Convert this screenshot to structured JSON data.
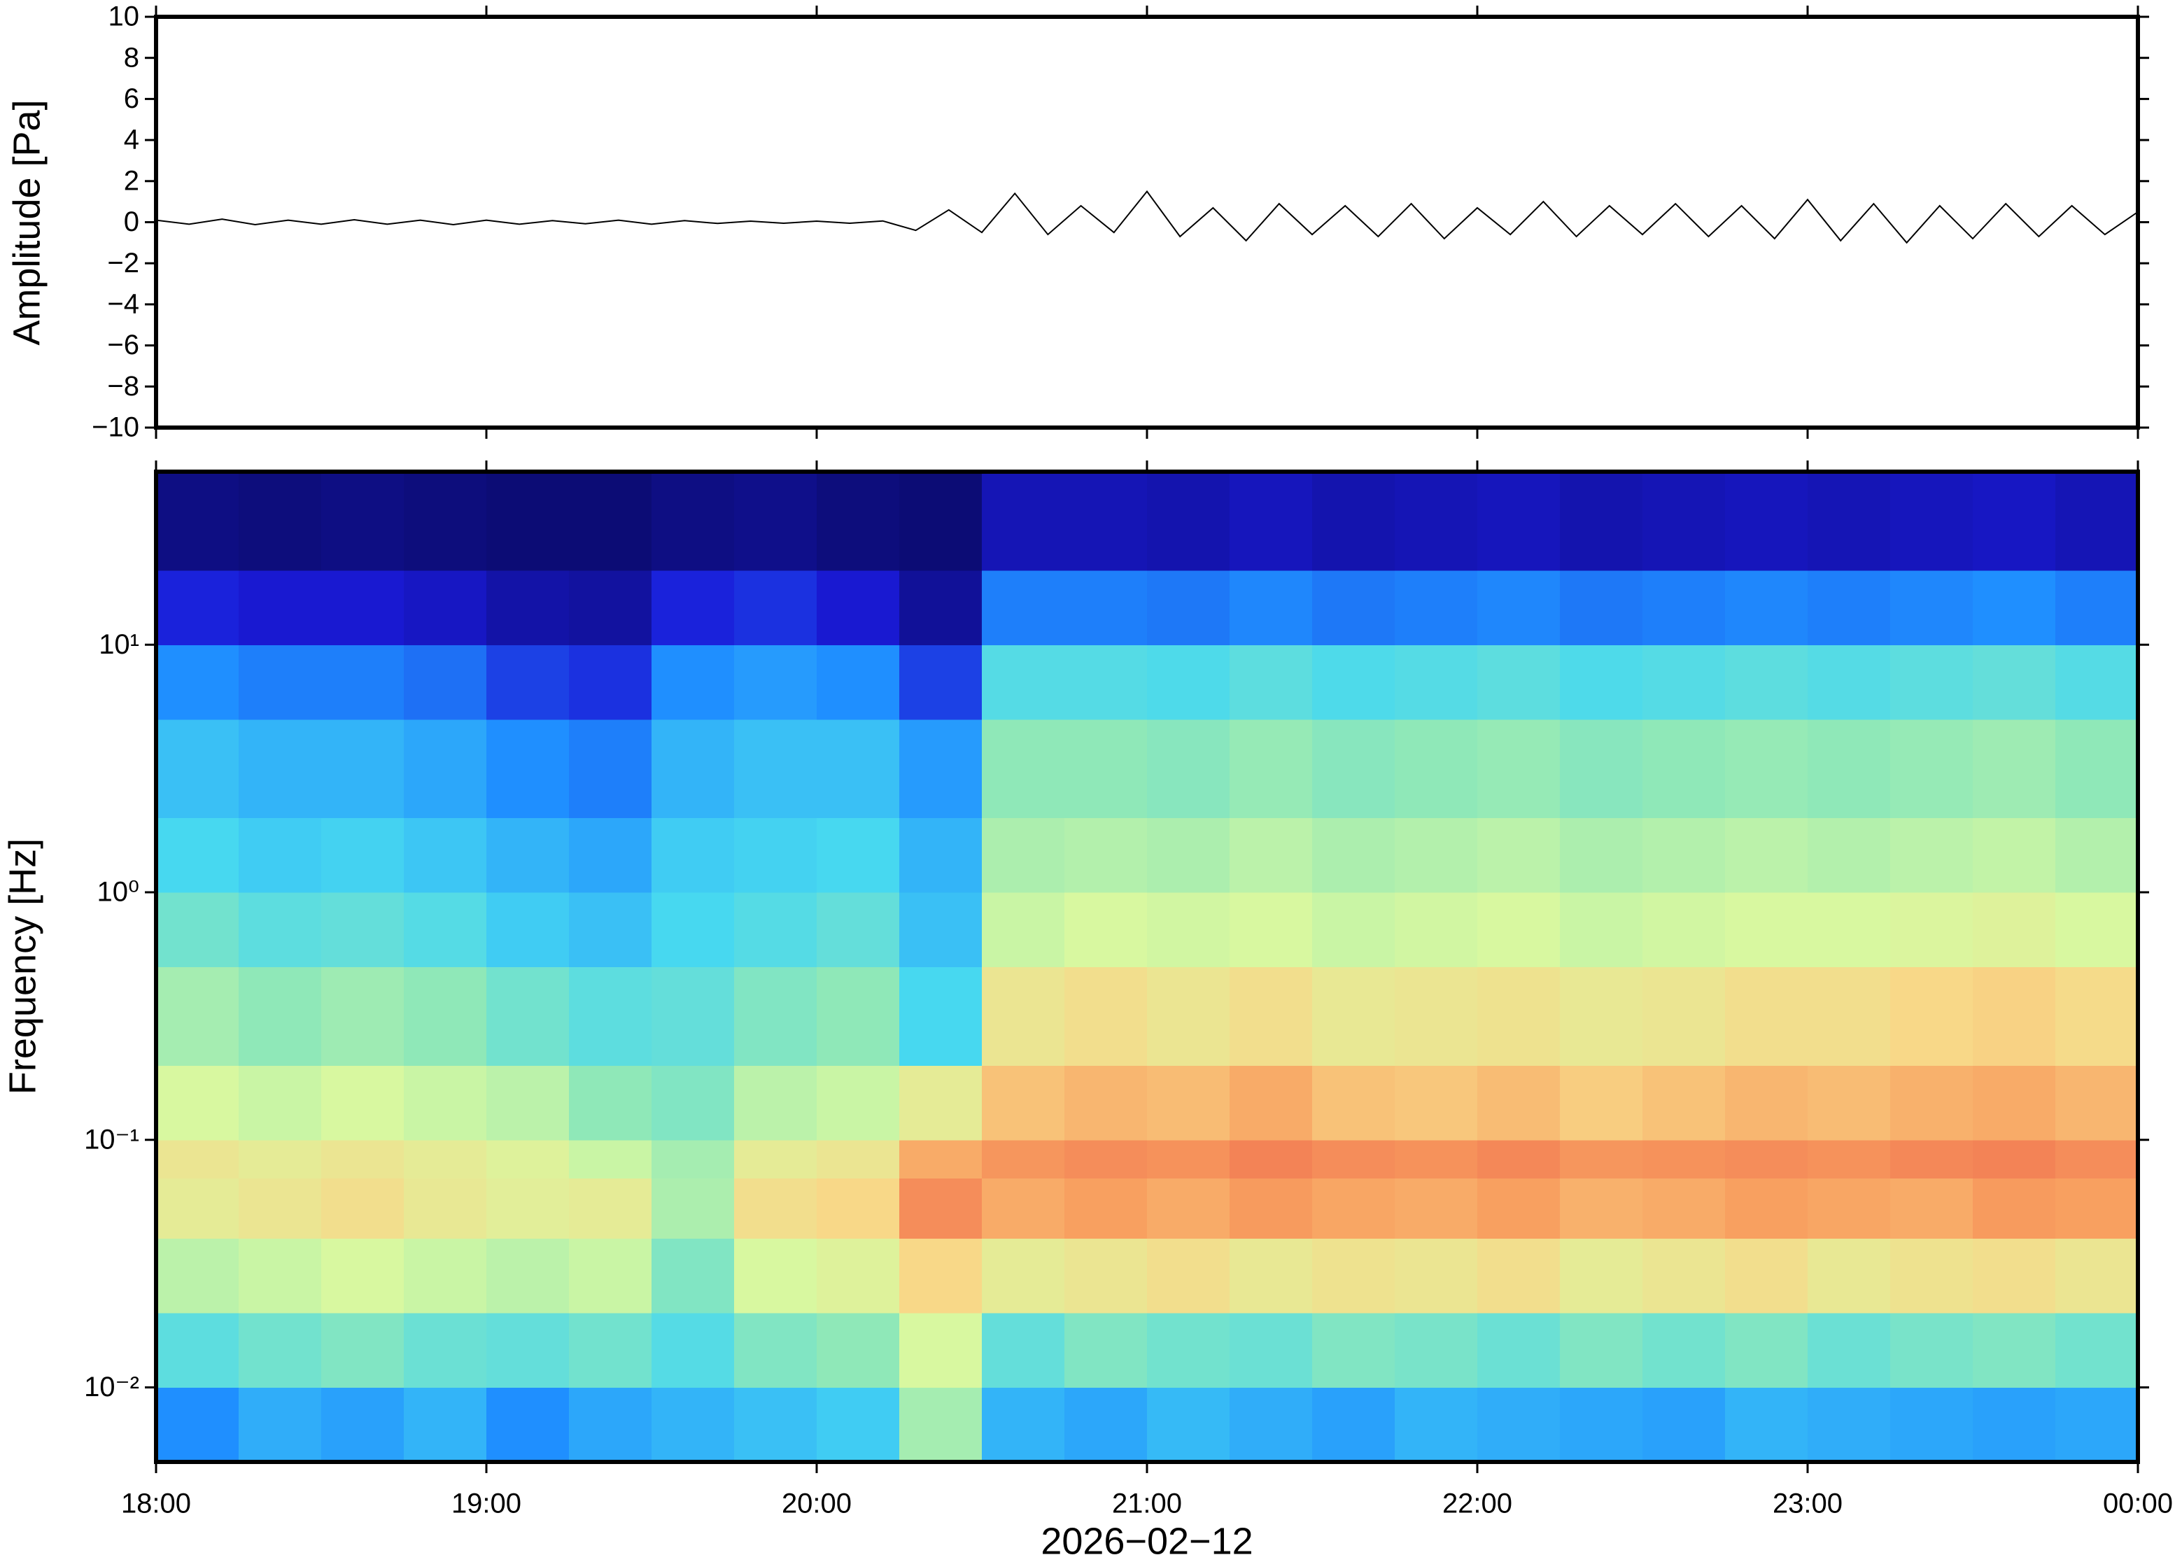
{
  "chart_data": [
    {
      "type": "line",
      "ylabel": "Amplitude [Pa]",
      "color": "#000000",
      "x": [
        18.0,
        18.1,
        18.2,
        18.3,
        18.4,
        18.5,
        18.6,
        18.7,
        18.8,
        18.9,
        19.0,
        19.1,
        19.2,
        19.3,
        19.4,
        19.5,
        19.6,
        19.7,
        19.8,
        19.9,
        20.0,
        20.1,
        20.2,
        20.3,
        20.4,
        20.5,
        20.6,
        20.7,
        20.8,
        20.9,
        21.0,
        21.1,
        21.2,
        21.3,
        21.4,
        21.5,
        21.6,
        21.7,
        21.8,
        21.9,
        22.0,
        22.1,
        22.2,
        22.3,
        22.4,
        22.5,
        22.6,
        22.7,
        22.8,
        22.9,
        23.0,
        23.1,
        23.2,
        23.3,
        23.4,
        23.5,
        23.6,
        23.7,
        23.8,
        23.9,
        24.0
      ],
      "values": [
        0.1,
        -0.1,
        0.15,
        -0.12,
        0.1,
        -0.1,
        0.12,
        -0.1,
        0.1,
        -0.12,
        0.1,
        -0.1,
        0.08,
        -0.08,
        0.1,
        -0.1,
        0.08,
        -0.06,
        0.05,
        -0.05,
        0.05,
        -0.05,
        0.06,
        -0.4,
        0.6,
        -0.5,
        1.4,
        -0.6,
        0.8,
        -0.5,
        1.5,
        -0.7,
        0.7,
        -0.9,
        0.9,
        -0.6,
        0.8,
        -0.7,
        0.9,
        -0.8,
        0.7,
        -0.6,
        1.0,
        -0.7,
        0.8,
        -0.6,
        0.9,
        -0.7,
        0.8,
        -0.8,
        1.1,
        -0.9,
        0.9,
        -1.0,
        0.8,
        -0.8,
        0.9,
        -0.7,
        0.8,
        -0.6,
        0.5
      ],
      "xlim": [
        18,
        24
      ],
      "xticks": [
        18,
        19,
        20,
        21,
        22,
        23,
        24
      ],
      "ylim": [
        -10,
        10
      ],
      "yticks": [
        {
          "value": -10,
          "label": "−10"
        },
        {
          "value": -8,
          "label": "−8"
        },
        {
          "value": -6,
          "label": "−6"
        },
        {
          "value": -4,
          "label": "−4"
        },
        {
          "value": -2,
          "label": "−2"
        },
        0,
        2,
        4,
        6,
        8,
        10
      ]
    },
    {
      "type": "heatmap",
      "ylabel": "Frequency [Hz]",
      "xlabel": "2026−02−12",
      "ylog": true,
      "xbins": [
        18,
        18.25,
        18.5,
        18.75,
        19,
        19.25,
        19.5,
        19.75,
        20,
        20.25,
        20.5,
        20.75,
        21,
        21.25,
        21.5,
        21.75,
        22,
        22.25,
        22.5,
        22.75,
        23,
        23.25,
        23.5,
        23.75,
        24
      ],
      "ybins": [
        0.005,
        0.01,
        0.02,
        0.04,
        0.07,
        0.1,
        0.2,
        0.5,
        1,
        2,
        5,
        10,
        20,
        50
      ],
      "values": [
        [
          0.3,
          0.35,
          0.33,
          0.36,
          0.3,
          0.34,
          0.36,
          0.38,
          0.4,
          0.55,
          0.36,
          0.34,
          0.37,
          0.35,
          0.33,
          0.36,
          0.35,
          0.34,
          0.33,
          0.36,
          0.35,
          0.34,
          0.33,
          0.34
        ],
        [
          0.45,
          0.48,
          0.5,
          0.47,
          0.46,
          0.48,
          0.44,
          0.5,
          0.52,
          0.62,
          0.46,
          0.5,
          0.48,
          0.47,
          0.5,
          0.49,
          0.47,
          0.5,
          0.48,
          0.5,
          0.47,
          0.49,
          0.5,
          0.48
        ],
        [
          0.58,
          0.6,
          0.62,
          0.6,
          0.58,
          0.6,
          0.5,
          0.62,
          0.64,
          0.72,
          0.66,
          0.68,
          0.7,
          0.67,
          0.69,
          0.68,
          0.7,
          0.66,
          0.68,
          0.7,
          0.67,
          0.69,
          0.7,
          0.68
        ],
        [
          0.66,
          0.68,
          0.7,
          0.67,
          0.65,
          0.66,
          0.56,
          0.7,
          0.72,
          0.86,
          0.8,
          0.82,
          0.8,
          0.83,
          0.81,
          0.8,
          0.82,
          0.79,
          0.8,
          0.82,
          0.81,
          0.8,
          0.83,
          0.82
        ],
        [
          0.68,
          0.66,
          0.68,
          0.66,
          0.64,
          0.6,
          0.55,
          0.66,
          0.68,
          0.8,
          0.84,
          0.86,
          0.85,
          0.88,
          0.86,
          0.85,
          0.87,
          0.84,
          0.85,
          0.86,
          0.85,
          0.87,
          0.88,
          0.86
        ],
        [
          0.62,
          0.6,
          0.62,
          0.6,
          0.58,
          0.52,
          0.5,
          0.58,
          0.6,
          0.66,
          0.76,
          0.78,
          0.77,
          0.8,
          0.76,
          0.75,
          0.77,
          0.74,
          0.76,
          0.78,
          0.77,
          0.79,
          0.8,
          0.78
        ],
        [
          0.55,
          0.52,
          0.54,
          0.52,
          0.48,
          0.45,
          0.46,
          0.5,
          0.52,
          0.42,
          0.68,
          0.7,
          0.68,
          0.7,
          0.67,
          0.68,
          0.69,
          0.67,
          0.68,
          0.7,
          0.7,
          0.72,
          0.73,
          0.71
        ],
        [
          0.48,
          0.45,
          0.46,
          0.44,
          0.4,
          0.38,
          0.42,
          0.44,
          0.46,
          0.38,
          0.6,
          0.62,
          0.61,
          0.62,
          0.6,
          0.61,
          0.62,
          0.6,
          0.61,
          0.62,
          0.62,
          0.63,
          0.64,
          0.62
        ],
        [
          0.42,
          0.4,
          0.41,
          0.39,
          0.36,
          0.34,
          0.4,
          0.41,
          0.42,
          0.36,
          0.56,
          0.57,
          0.56,
          0.58,
          0.56,
          0.57,
          0.58,
          0.56,
          0.57,
          0.58,
          0.57,
          0.58,
          0.59,
          0.57
        ],
        [
          0.38,
          0.36,
          0.36,
          0.34,
          0.3,
          0.28,
          0.36,
          0.38,
          0.38,
          0.32,
          0.52,
          0.52,
          0.51,
          0.53,
          0.51,
          0.52,
          0.53,
          0.51,
          0.52,
          0.53,
          0.52,
          0.53,
          0.54,
          0.52
        ],
        [
          0.3,
          0.28,
          0.28,
          0.26,
          0.2,
          0.18,
          0.3,
          0.32,
          0.3,
          0.2,
          0.44,
          0.44,
          0.43,
          0.45,
          0.43,
          0.44,
          0.45,
          0.43,
          0.44,
          0.45,
          0.44,
          0.45,
          0.46,
          0.44
        ],
        [
          0.16,
          0.14,
          0.14,
          0.12,
          0.08,
          0.07,
          0.16,
          0.18,
          0.14,
          0.06,
          0.28,
          0.28,
          0.27,
          0.29,
          0.27,
          0.28,
          0.29,
          0.27,
          0.28,
          0.29,
          0.28,
          0.29,
          0.3,
          0.28
        ],
        [
          0.03,
          0.02,
          0.03,
          0.02,
          0.01,
          0.01,
          0.03,
          0.04,
          0.02,
          0.01,
          0.1,
          0.1,
          0.09,
          0.11,
          0.09,
          0.1,
          0.11,
          0.09,
          0.1,
          0.11,
          0.1,
          0.11,
          0.12,
          0.1
        ]
      ],
      "clim": [
        0,
        1
      ],
      "colorscale": [
        [
          0,
          "#0b0b6e"
        ],
        [
          0.15,
          "#1a1ad8"
        ],
        [
          0.3,
          "#1f8fff"
        ],
        [
          0.42,
          "#47d8f0"
        ],
        [
          0.52,
          "#8fe8b8"
        ],
        [
          0.62,
          "#d8f8a0"
        ],
        [
          0.72,
          "#f8d888"
        ],
        [
          0.82,
          "#f8a060"
        ],
        [
          0.92,
          "#f07050"
        ],
        [
          1,
          "#e03838"
        ]
      ],
      "xlim": [
        18,
        24
      ],
      "xticks": [
        {
          "value": 18,
          "label": "18:00"
        },
        {
          "value": 19,
          "label": "19:00"
        },
        {
          "value": 20,
          "label": "20:00"
        },
        {
          "value": 21,
          "label": "21:00"
        },
        {
          "value": 22,
          "label": "22:00"
        },
        {
          "value": 23,
          "label": "23:00"
        },
        {
          "value": 24,
          "label": "00:00"
        }
      ],
      "ylim": [
        0.005,
        50
      ],
      "yticks": [
        {
          "value": 0.01,
          "label": "10⁻²"
        },
        {
          "value": 0.1,
          "label": "10⁻¹"
        },
        {
          "value": 1,
          "label": "10⁰"
        },
        {
          "value": 10,
          "label": "10¹"
        }
      ]
    }
  ]
}
